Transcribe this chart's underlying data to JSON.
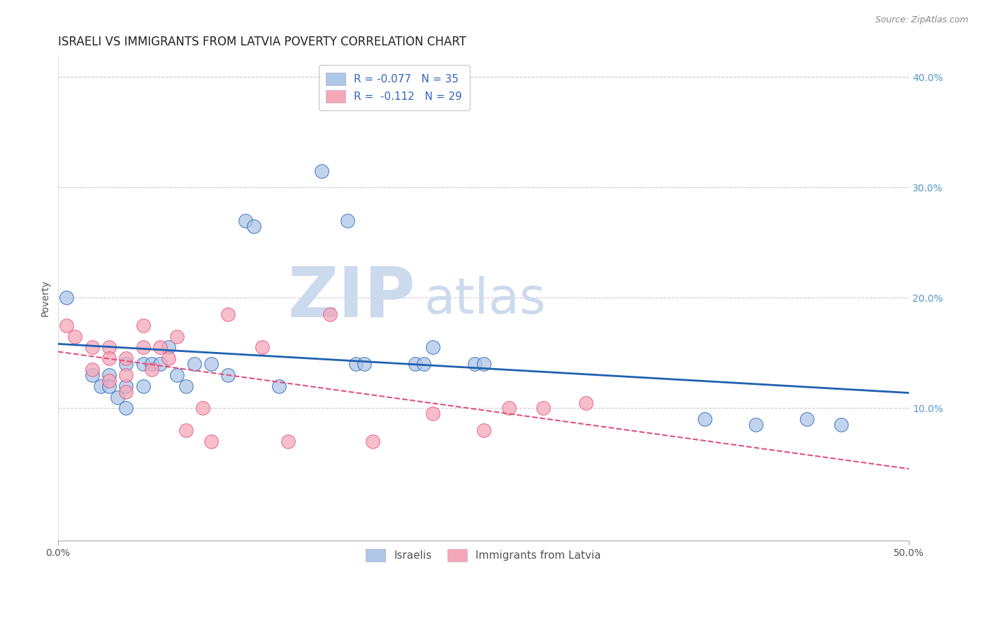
{
  "title": "ISRAELI VS IMMIGRANTS FROM LATVIA POVERTY CORRELATION CHART",
  "source": "Source: ZipAtlas.com",
  "ylabel": "Poverty",
  "xlim": [
    0.0,
    0.5
  ],
  "ylim": [
    -0.02,
    0.42
  ],
  "yticks": [
    0.1,
    0.2,
    0.3,
    0.4
  ],
  "ytick_labels": [
    "10.0%",
    "20.0%",
    "30.0%",
    "40.0%"
  ],
  "israeli_R": -0.077,
  "israeli_N": 35,
  "latvia_R": -0.112,
  "latvia_N": 29,
  "israeli_color": "#aec6e8",
  "latvian_color": "#f4a7b9",
  "israeli_line_color": "#2060b0",
  "latvian_line_color": "#e0507a",
  "watermark_zip": "ZIP",
  "watermark_atlas": "atlas",
  "background_color": "#ffffff",
  "grid_color": "#cccccc",
  "watermark_color_zip": "#c8d8ee",
  "watermark_color_atlas": "#c8d8ee",
  "watermark_fontsize": 68,
  "title_fontsize": 12,
  "axis_label_fontsize": 10,
  "tick_fontsize": 10,
  "legend_fontsize": 11,
  "scatter_size": 200,
  "israeli_scatter_x": [
    0.005,
    0.02,
    0.025,
    0.03,
    0.03,
    0.035,
    0.04,
    0.04,
    0.04,
    0.05,
    0.05,
    0.055,
    0.06,
    0.065,
    0.07,
    0.075,
    0.08,
    0.09,
    0.1,
    0.11,
    0.115,
    0.13,
    0.155,
    0.17,
    0.175,
    0.18,
    0.21,
    0.215,
    0.22,
    0.245,
    0.25,
    0.38,
    0.41,
    0.44,
    0.46
  ],
  "israeli_scatter_y": [
    0.2,
    0.13,
    0.12,
    0.13,
    0.12,
    0.11,
    0.14,
    0.12,
    0.1,
    0.14,
    0.12,
    0.14,
    0.14,
    0.155,
    0.13,
    0.12,
    0.14,
    0.14,
    0.13,
    0.27,
    0.265,
    0.12,
    0.315,
    0.27,
    0.14,
    0.14,
    0.14,
    0.14,
    0.155,
    0.14,
    0.14,
    0.09,
    0.085,
    0.09,
    0.085
  ],
  "latvian_scatter_x": [
    0.005,
    0.01,
    0.02,
    0.02,
    0.03,
    0.03,
    0.03,
    0.04,
    0.04,
    0.04,
    0.05,
    0.05,
    0.055,
    0.06,
    0.065,
    0.07,
    0.075,
    0.085,
    0.09,
    0.1,
    0.12,
    0.135,
    0.16,
    0.185,
    0.22,
    0.25,
    0.265,
    0.285,
    0.31
  ],
  "latvian_scatter_y": [
    0.175,
    0.165,
    0.155,
    0.135,
    0.155,
    0.145,
    0.125,
    0.145,
    0.13,
    0.115,
    0.175,
    0.155,
    0.135,
    0.155,
    0.145,
    0.165,
    0.08,
    0.1,
    0.07,
    0.185,
    0.155,
    0.07,
    0.185,
    0.07,
    0.095,
    0.08,
    0.1,
    0.1,
    0.105
  ]
}
